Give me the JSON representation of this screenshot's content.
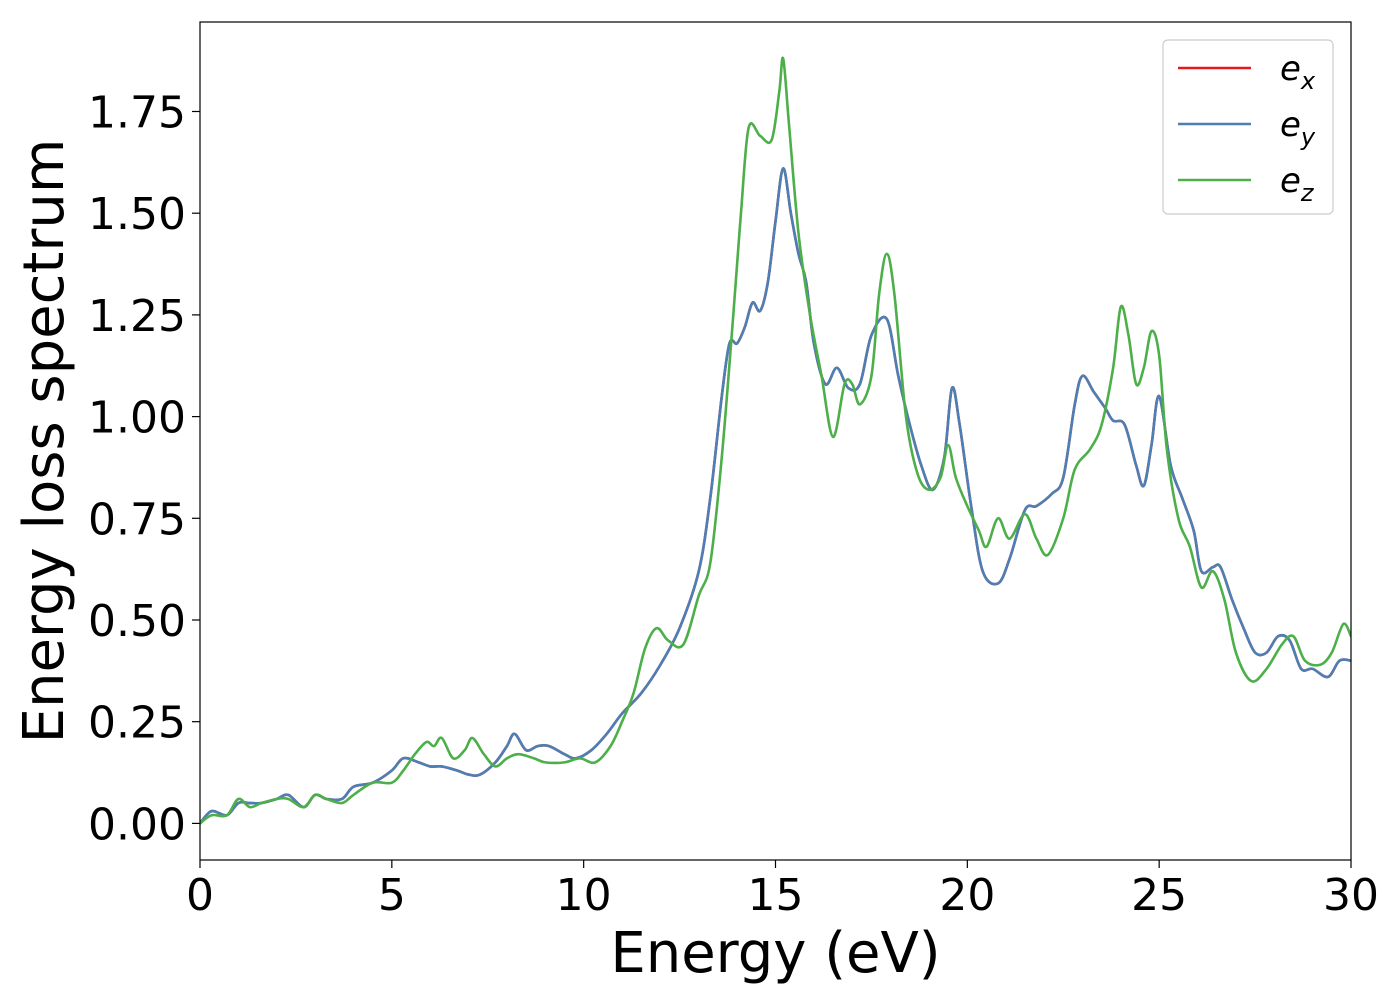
{
  "chart_data": {
    "type": "line",
    "title": "",
    "xlabel": "Energy (eV)",
    "ylabel": "Energy loss spectrum",
    "xlim": [
      0,
      30
    ],
    "ylim": [
      -0.09,
      1.97
    ],
    "xticks": [
      0,
      5,
      10,
      15,
      20,
      25,
      30
    ],
    "yticks": [
      0.0,
      0.25,
      0.5,
      0.75,
      1.0,
      1.25,
      1.5,
      1.75
    ],
    "xtick_labels": [
      "0",
      "5",
      "10",
      "15",
      "20",
      "25",
      "30"
    ],
    "ytick_labels": [
      "0.00",
      "0.25",
      "0.50",
      "0.75",
      "1.00",
      "1.25",
      "1.50",
      "1.75"
    ],
    "grid": false,
    "legend_position": "top-right",
    "series": [
      {
        "name": "e_x",
        "legend_base": "e",
        "legend_sub": "x",
        "color": "#e41a1c",
        "points": [
          [
            0,
            0.0
          ],
          [
            0.3,
            0.03
          ],
          [
            0.7,
            0.02
          ],
          [
            1.0,
            0.05
          ],
          [
            1.3,
            0.05
          ],
          [
            1.6,
            0.05
          ],
          [
            2.0,
            0.06
          ],
          [
            2.3,
            0.07
          ],
          [
            2.7,
            0.04
          ],
          [
            3.0,
            0.07
          ],
          [
            3.3,
            0.06
          ],
          [
            3.7,
            0.06
          ],
          [
            4.0,
            0.09
          ],
          [
            4.5,
            0.1
          ],
          [
            5.0,
            0.13
          ],
          [
            5.3,
            0.16
          ],
          [
            5.7,
            0.15
          ],
          [
            6.0,
            0.14
          ],
          [
            6.3,
            0.14
          ],
          [
            6.7,
            0.13
          ],
          [
            7.0,
            0.12
          ],
          [
            7.3,
            0.12
          ],
          [
            7.7,
            0.15
          ],
          [
            8.0,
            0.19
          ],
          [
            8.2,
            0.22
          ],
          [
            8.5,
            0.18
          ],
          [
            8.8,
            0.19
          ],
          [
            9.1,
            0.19
          ],
          [
            9.5,
            0.17
          ],
          [
            9.8,
            0.16
          ],
          [
            10.2,
            0.18
          ],
          [
            10.6,
            0.22
          ],
          [
            11.0,
            0.27
          ],
          [
            11.5,
            0.32
          ],
          [
            12.0,
            0.39
          ],
          [
            12.5,
            0.48
          ],
          [
            13.0,
            0.62
          ],
          [
            13.3,
            0.8
          ],
          [
            13.6,
            1.05
          ],
          [
            13.8,
            1.18
          ],
          [
            14.0,
            1.18
          ],
          [
            14.2,
            1.22
          ],
          [
            14.4,
            1.28
          ],
          [
            14.6,
            1.26
          ],
          [
            14.8,
            1.33
          ],
          [
            15.0,
            1.48
          ],
          [
            15.2,
            1.61
          ],
          [
            15.4,
            1.5
          ],
          [
            15.6,
            1.4
          ],
          [
            15.8,
            1.33
          ],
          [
            16.0,
            1.18
          ],
          [
            16.3,
            1.08
          ],
          [
            16.6,
            1.12
          ],
          [
            16.9,
            1.07
          ],
          [
            17.2,
            1.08
          ],
          [
            17.5,
            1.2
          ],
          [
            17.9,
            1.24
          ],
          [
            18.2,
            1.1
          ],
          [
            18.5,
            0.98
          ],
          [
            18.8,
            0.88
          ],
          [
            19.1,
            0.82
          ],
          [
            19.4,
            0.9
          ],
          [
            19.6,
            1.07
          ],
          [
            19.8,
            0.98
          ],
          [
            20.1,
            0.78
          ],
          [
            20.4,
            0.62
          ],
          [
            20.8,
            0.59
          ],
          [
            21.1,
            0.65
          ],
          [
            21.5,
            0.77
          ],
          [
            21.8,
            0.78
          ],
          [
            22.2,
            0.81
          ],
          [
            22.5,
            0.85
          ],
          [
            22.8,
            1.03
          ],
          [
            23.0,
            1.1
          ],
          [
            23.3,
            1.06
          ],
          [
            23.6,
            1.02
          ],
          [
            23.8,
            0.99
          ],
          [
            24.1,
            0.98
          ],
          [
            24.4,
            0.88
          ],
          [
            24.6,
            0.83
          ],
          [
            24.8,
            0.93
          ],
          [
            25.0,
            1.05
          ],
          [
            25.3,
            0.88
          ],
          [
            25.6,
            0.8
          ],
          [
            25.9,
            0.72
          ],
          [
            26.1,
            0.62
          ],
          [
            26.4,
            0.63
          ],
          [
            26.6,
            0.63
          ],
          [
            26.9,
            0.55
          ],
          [
            27.2,
            0.48
          ],
          [
            27.5,
            0.42
          ],
          [
            27.8,
            0.42
          ],
          [
            28.1,
            0.46
          ],
          [
            28.4,
            0.45
          ],
          [
            28.7,
            0.38
          ],
          [
            29.0,
            0.38
          ],
          [
            29.4,
            0.36
          ],
          [
            29.7,
            0.4
          ],
          [
            30.0,
            0.4
          ]
        ]
      },
      {
        "name": "e_y",
        "legend_base": "e",
        "legend_sub": "y",
        "color": "#4b7fb5",
        "points": [
          [
            0,
            0.0
          ],
          [
            0.3,
            0.03
          ],
          [
            0.7,
            0.02
          ],
          [
            1.0,
            0.05
          ],
          [
            1.3,
            0.05
          ],
          [
            1.6,
            0.05
          ],
          [
            2.0,
            0.06
          ],
          [
            2.3,
            0.07
          ],
          [
            2.7,
            0.04
          ],
          [
            3.0,
            0.07
          ],
          [
            3.3,
            0.06
          ],
          [
            3.7,
            0.06
          ],
          [
            4.0,
            0.09
          ],
          [
            4.5,
            0.1
          ],
          [
            5.0,
            0.13
          ],
          [
            5.3,
            0.16
          ],
          [
            5.7,
            0.15
          ],
          [
            6.0,
            0.14
          ],
          [
            6.3,
            0.14
          ],
          [
            6.7,
            0.13
          ],
          [
            7.0,
            0.12
          ],
          [
            7.3,
            0.12
          ],
          [
            7.7,
            0.15
          ],
          [
            8.0,
            0.19
          ],
          [
            8.2,
            0.22
          ],
          [
            8.5,
            0.18
          ],
          [
            8.8,
            0.19
          ],
          [
            9.1,
            0.19
          ],
          [
            9.5,
            0.17
          ],
          [
            9.8,
            0.16
          ],
          [
            10.2,
            0.18
          ],
          [
            10.6,
            0.22
          ],
          [
            11.0,
            0.27
          ],
          [
            11.5,
            0.32
          ],
          [
            12.0,
            0.39
          ],
          [
            12.5,
            0.48
          ],
          [
            13.0,
            0.62
          ],
          [
            13.3,
            0.8
          ],
          [
            13.6,
            1.05
          ],
          [
            13.8,
            1.18
          ],
          [
            14.0,
            1.18
          ],
          [
            14.2,
            1.22
          ],
          [
            14.4,
            1.28
          ],
          [
            14.6,
            1.26
          ],
          [
            14.8,
            1.33
          ],
          [
            15.0,
            1.48
          ],
          [
            15.2,
            1.61
          ],
          [
            15.4,
            1.5
          ],
          [
            15.6,
            1.4
          ],
          [
            15.8,
            1.33
          ],
          [
            16.0,
            1.18
          ],
          [
            16.3,
            1.08
          ],
          [
            16.6,
            1.12
          ],
          [
            16.9,
            1.07
          ],
          [
            17.2,
            1.08
          ],
          [
            17.5,
            1.2
          ],
          [
            17.9,
            1.24
          ],
          [
            18.2,
            1.1
          ],
          [
            18.5,
            0.98
          ],
          [
            18.8,
            0.88
          ],
          [
            19.1,
            0.82
          ],
          [
            19.4,
            0.9
          ],
          [
            19.6,
            1.07
          ],
          [
            19.8,
            0.98
          ],
          [
            20.1,
            0.78
          ],
          [
            20.4,
            0.62
          ],
          [
            20.8,
            0.59
          ],
          [
            21.1,
            0.65
          ],
          [
            21.5,
            0.77
          ],
          [
            21.8,
            0.78
          ],
          [
            22.2,
            0.81
          ],
          [
            22.5,
            0.85
          ],
          [
            22.8,
            1.03
          ],
          [
            23.0,
            1.1
          ],
          [
            23.3,
            1.06
          ],
          [
            23.6,
            1.02
          ],
          [
            23.8,
            0.99
          ],
          [
            24.1,
            0.98
          ],
          [
            24.4,
            0.88
          ],
          [
            24.6,
            0.83
          ],
          [
            24.8,
            0.93
          ],
          [
            25.0,
            1.05
          ],
          [
            25.3,
            0.88
          ],
          [
            25.6,
            0.8
          ],
          [
            25.9,
            0.72
          ],
          [
            26.1,
            0.62
          ],
          [
            26.4,
            0.63
          ],
          [
            26.6,
            0.63
          ],
          [
            26.9,
            0.55
          ],
          [
            27.2,
            0.48
          ],
          [
            27.5,
            0.42
          ],
          [
            27.8,
            0.42
          ],
          [
            28.1,
            0.46
          ],
          [
            28.4,
            0.45
          ],
          [
            28.7,
            0.38
          ],
          [
            29.0,
            0.38
          ],
          [
            29.4,
            0.36
          ],
          [
            29.7,
            0.4
          ],
          [
            30.0,
            0.4
          ]
        ]
      },
      {
        "name": "e_z",
        "legend_base": "e",
        "legend_sub": "z",
        "color": "#4daf4a",
        "points": [
          [
            0,
            0.0
          ],
          [
            0.3,
            0.02
          ],
          [
            0.7,
            0.02
          ],
          [
            1.0,
            0.06
          ],
          [
            1.3,
            0.04
          ],
          [
            1.6,
            0.05
          ],
          [
            2.0,
            0.06
          ],
          [
            2.3,
            0.06
          ],
          [
            2.7,
            0.04
          ],
          [
            3.0,
            0.07
          ],
          [
            3.3,
            0.06
          ],
          [
            3.7,
            0.05
          ],
          [
            4.0,
            0.07
          ],
          [
            4.5,
            0.1
          ],
          [
            5.0,
            0.1
          ],
          [
            5.3,
            0.13
          ],
          [
            5.6,
            0.17
          ],
          [
            5.9,
            0.2
          ],
          [
            6.1,
            0.19
          ],
          [
            6.3,
            0.21
          ],
          [
            6.6,
            0.16
          ],
          [
            6.9,
            0.18
          ],
          [
            7.1,
            0.21
          ],
          [
            7.4,
            0.17
          ],
          [
            7.7,
            0.14
          ],
          [
            8.0,
            0.16
          ],
          [
            8.3,
            0.17
          ],
          [
            8.7,
            0.16
          ],
          [
            9.0,
            0.15
          ],
          [
            9.5,
            0.15
          ],
          [
            9.9,
            0.16
          ],
          [
            10.3,
            0.15
          ],
          [
            10.7,
            0.19
          ],
          [
            11.0,
            0.25
          ],
          [
            11.3,
            0.32
          ],
          [
            11.6,
            0.43
          ],
          [
            11.9,
            0.48
          ],
          [
            12.2,
            0.45
          ],
          [
            12.6,
            0.44
          ],
          [
            13.0,
            0.56
          ],
          [
            13.3,
            0.64
          ],
          [
            13.6,
            0.9
          ],
          [
            13.9,
            1.25
          ],
          [
            14.1,
            1.5
          ],
          [
            14.3,
            1.71
          ],
          [
            14.6,
            1.69
          ],
          [
            14.9,
            1.68
          ],
          [
            15.1,
            1.8
          ],
          [
            15.2,
            1.88
          ],
          [
            15.35,
            1.72
          ],
          [
            15.6,
            1.45
          ],
          [
            15.9,
            1.25
          ],
          [
            16.2,
            1.1
          ],
          [
            16.5,
            0.95
          ],
          [
            16.8,
            1.08
          ],
          [
            17.0,
            1.08
          ],
          [
            17.2,
            1.03
          ],
          [
            17.5,
            1.1
          ],
          [
            17.7,
            1.3
          ],
          [
            17.9,
            1.4
          ],
          [
            18.1,
            1.3
          ],
          [
            18.4,
            1.0
          ],
          [
            18.7,
            0.86
          ],
          [
            19.0,
            0.82
          ],
          [
            19.3,
            0.85
          ],
          [
            19.5,
            0.93
          ],
          [
            19.7,
            0.85
          ],
          [
            20.0,
            0.78
          ],
          [
            20.3,
            0.72
          ],
          [
            20.5,
            0.68
          ],
          [
            20.8,
            0.75
          ],
          [
            21.1,
            0.7
          ],
          [
            21.5,
            0.76
          ],
          [
            21.8,
            0.7
          ],
          [
            22.1,
            0.66
          ],
          [
            22.5,
            0.75
          ],
          [
            22.8,
            0.87
          ],
          [
            23.2,
            0.92
          ],
          [
            23.5,
            0.98
          ],
          [
            23.8,
            1.12
          ],
          [
            24.0,
            1.27
          ],
          [
            24.2,
            1.2
          ],
          [
            24.4,
            1.08
          ],
          [
            24.6,
            1.12
          ],
          [
            24.8,
            1.21
          ],
          [
            25.0,
            1.15
          ],
          [
            25.2,
            0.92
          ],
          [
            25.5,
            0.75
          ],
          [
            25.8,
            0.68
          ],
          [
            26.1,
            0.58
          ],
          [
            26.4,
            0.62
          ],
          [
            26.7,
            0.55
          ],
          [
            27.0,
            0.42
          ],
          [
            27.4,
            0.35
          ],
          [
            27.8,
            0.38
          ],
          [
            28.2,
            0.44
          ],
          [
            28.5,
            0.46
          ],
          [
            28.8,
            0.4
          ],
          [
            29.2,
            0.39
          ],
          [
            29.5,
            0.42
          ],
          [
            29.8,
            0.49
          ],
          [
            30.0,
            0.46
          ]
        ]
      }
    ]
  }
}
